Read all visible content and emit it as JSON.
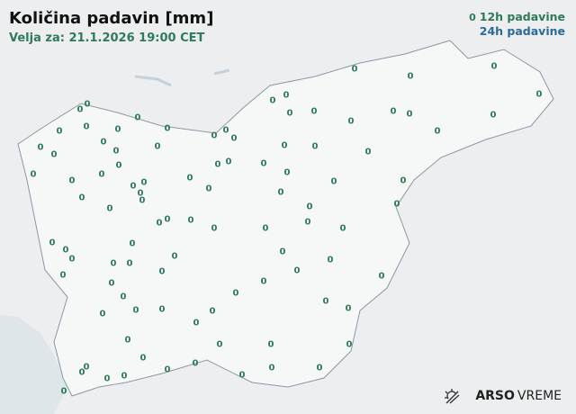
{
  "header": {
    "title": "Količina padavin [mm]",
    "valid": "Velja za: 21.1.2026 19:00 CET"
  },
  "legend": {
    "marker": "0",
    "label_12h": "12h padavine",
    "label_24h": "24h padavine",
    "color_12h": "#2e7a5a",
    "color_24h": "#2a6a9a"
  },
  "logo": {
    "icon": "sun-icon",
    "brand": "ARSO",
    "suffix": "VREME"
  },
  "stations": {
    "values": [
      "0",
      "0",
      "0",
      "0",
      "0",
      "0",
      "0",
      "0",
      "0",
      "0",
      "0",
      "0",
      "0",
      "0",
      "0",
      "0",
      "0",
      "0",
      "0",
      "0",
      "0",
      "0",
      "0",
      "0",
      "0",
      "0",
      "0",
      "0",
      "0",
      "0",
      "0",
      "0",
      "0",
      "0",
      "0",
      "0",
      "0",
      "0",
      "0",
      "0",
      "0",
      "0",
      "0",
      "0",
      "0",
      "0",
      "0",
      "0",
      "0",
      "0",
      "0",
      "0",
      "0",
      "0",
      "0",
      "0",
      "0",
      "0",
      "0",
      "0",
      "0",
      "0",
      "0",
      "0",
      "0",
      "0",
      "0",
      "0",
      "0",
      "0",
      "0",
      "0",
      "0",
      "0",
      "0",
      "0",
      "0",
      "0",
      "0",
      "0",
      "0",
      "0",
      "0",
      "0",
      "0",
      "0",
      "0",
      "0",
      "0",
      "0",
      "0",
      "0",
      "0",
      "0",
      "0",
      "0",
      "0",
      "0"
    ]
  }
}
